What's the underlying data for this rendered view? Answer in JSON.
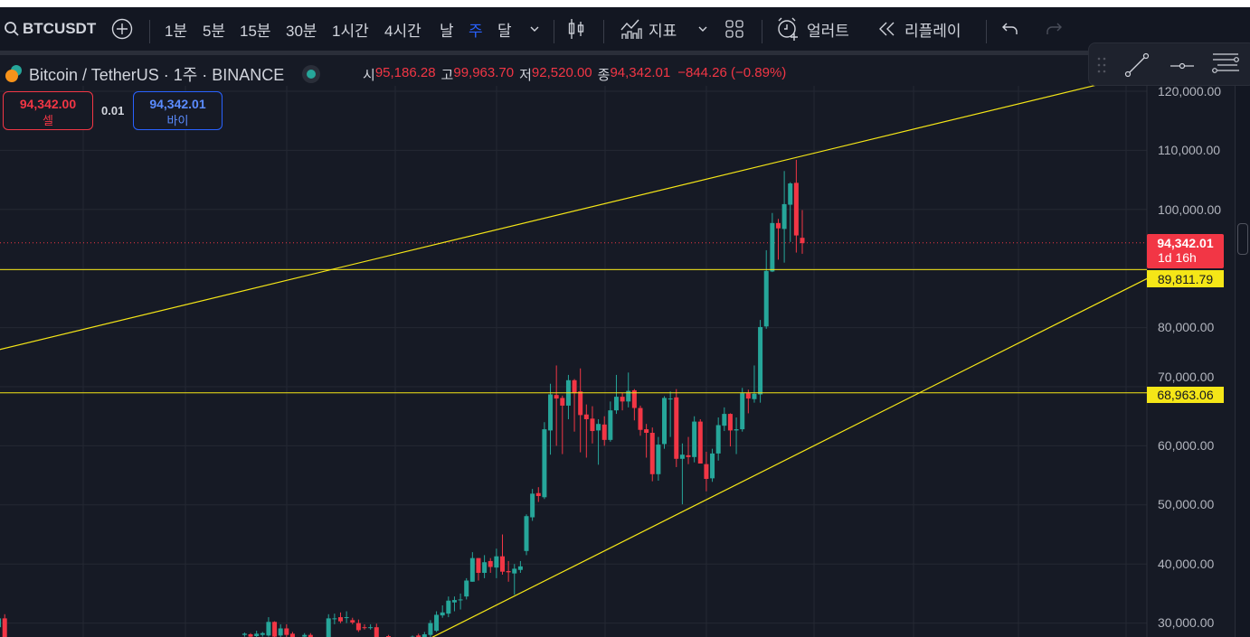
{
  "toolbar": {
    "symbol": "BTCUSDT",
    "intervals": [
      "1분",
      "5분",
      "15분",
      "30분",
      "1시간",
      "4시간",
      "날",
      "주",
      "달"
    ],
    "active_interval": "주",
    "indicators_label": "지표",
    "alert_label": "얼러트",
    "replay_label": "리플레이"
  },
  "legend": {
    "title": "Bitcoin / TetherUS · 1주 · BINANCE",
    "open_label": "시",
    "open": "95,186.28",
    "high_label": "고",
    "high": "99,963.70",
    "low_label": "저",
    "low": "92,520.00",
    "close_label": "종",
    "close": "94,342.01",
    "change": "−844.26 (−0.89%)"
  },
  "trade": {
    "sell_price": "94,342.00",
    "sell_label": "셀",
    "spread": "0.01",
    "buy_price": "94,342.01",
    "buy_label": "바이"
  },
  "price_axis": {
    "labels": [
      "120,000.00",
      "110,000.00",
      "100,000.00",
      "80,000.00",
      "70,000.00",
      "60,000.00",
      "50,000.00",
      "40,000.00",
      "30,000.00"
    ]
  },
  "tags": {
    "last_price": "94,342.01",
    "countdown": "1d 16h",
    "level1": "89,811.79",
    "level2": "68,963.06"
  },
  "colors": {
    "up": "#26a69a",
    "down": "#f23645",
    "drawing": "#f5e617",
    "accent": "#2962ff"
  },
  "chart_data": {
    "type": "candlestick",
    "price_range": [
      27600,
      125800
    ],
    "last_price": 94342.01,
    "horizontal_levels": [
      89811.79,
      68963.06
    ],
    "trend_lines": [
      {
        "from": {
          "bars_back": 133.8,
          "price": 76300
        },
        "to": {
          "bars_back": -50.5,
          "price": 121400
        }
      },
      {
        "from": {
          "bars_back": 61.7,
          "price": 27600
        },
        "to": {
          "bars_back": -57.5,
          "price": 88300
        }
      }
    ],
    "candles_bars_back_ohlc_k": [
      [
        134,
        29.3,
        31.5,
        28,
        30.8
      ],
      [
        133,
        30.8,
        31.5,
        27,
        27
      ],
      [
        93,
        28,
        28.4,
        27.7,
        28.2
      ],
      [
        92,
        28.1,
        28.3,
        27.5,
        27.7
      ],
      [
        91,
        27.8,
        28.7,
        27.6,
        28.2
      ],
      [
        90,
        28,
        28.5,
        27.7,
        28.3
      ],
      [
        89,
        27.9,
        31,
        27.7,
        30.2
      ],
      [
        88,
        30.2,
        30.3,
        27.5,
        27.7
      ],
      [
        87,
        27.9,
        29.8,
        27.6,
        29.1
      ],
      [
        86,
        29.1,
        29.8,
        27.5,
        28
      ],
      [
        85,
        28.2,
        28.5,
        27.4,
        27.6
      ],
      [
        83,
        27.7,
        28.3,
        27.5,
        28
      ],
      [
        82,
        28,
        28.3,
        27.4,
        27.6
      ],
      [
        79,
        27.6,
        31.5,
        27.5,
        30.8
      ],
      [
        78,
        30.7,
        31.6,
        29.8,
        30.8
      ],
      [
        77,
        31,
        31.8,
        30,
        30.3
      ],
      [
        76,
        30.9,
        32,
        30,
        31
      ],
      [
        75,
        30.5,
        30.9,
        29.8,
        30.1
      ],
      [
        74,
        30,
        30.6,
        28.5,
        28.8
      ],
      [
        73,
        29.3,
        29.8,
        28.9,
        29.2
      ],
      [
        72,
        29.2,
        29.8,
        28.9,
        29.3
      ],
      [
        71,
        29.3,
        29.9,
        27.4,
        27.5
      ],
      [
        69,
        27.8,
        28,
        27.4,
        27.6
      ],
      [
        65,
        27.5,
        27.9,
        27.3,
        27.7
      ],
      [
        64,
        27.9,
        28.2,
        27.4,
        27.6
      ],
      [
        63,
        27.6,
        28.5,
        27.4,
        28.1
      ],
      [
        62,
        28,
        30.5,
        27.5,
        30
      ],
      [
        61,
        28.7,
        32,
        28.5,
        31.4
      ],
      [
        60,
        31.3,
        33,
        30.9,
        31.8
      ],
      [
        59,
        31.6,
        34.5,
        31,
        33.8
      ],
      [
        58,
        33.5,
        34.5,
        32,
        33.9
      ],
      [
        57,
        33.9,
        35,
        32.3,
        34
      ],
      [
        56,
        34.5,
        37.6,
        34,
        37.2
      ],
      [
        55,
        37,
        42,
        37,
        41
      ],
      [
        54,
        41,
        41,
        37.2,
        38.5
      ],
      [
        53,
        38.5,
        41.5,
        37.6,
        40.3
      ],
      [
        52,
        40.5,
        41,
        38.5,
        39.5
      ],
      [
        51,
        39.4,
        42.6,
        37.6,
        41.3
      ],
      [
        50,
        41.3,
        45,
        38.2,
        38.7
      ],
      [
        49,
        38.8,
        40.5,
        37,
        38.6
      ],
      [
        48,
        38.4,
        40,
        34.8,
        39.2
      ],
      [
        47,
        39,
        40.5,
        38.5,
        39.6
      ],
      [
        46,
        42.2,
        48.4,
        41.5,
        48.1
      ],
      [
        45,
        47.9,
        52.7,
        47.3,
        51.9
      ],
      [
        44,
        52,
        53,
        50.5,
        51.5
      ],
      [
        43,
        51.3,
        64,
        51,
        62.8
      ],
      [
        42,
        62.6,
        70.5,
        58.5,
        68.7
      ],
      [
        41,
        68.6,
        73.6,
        60,
        68
      ],
      [
        40,
        68.1,
        68.5,
        58.6,
        66.8
      ],
      [
        39,
        66.8,
        72,
        64.5,
        71.1
      ],
      [
        38,
        71.1,
        71.3,
        62.4,
        68.9
      ],
      [
        37,
        69.2,
        73.1,
        58.9,
        65.2
      ],
      [
        36,
        65.3,
        67,
        58,
        64.5
      ],
      [
        35,
        64.6,
        66.7,
        60.4,
        62.5
      ],
      [
        34,
        62.6,
        64.5,
        56.8,
        63.7
      ],
      [
        33,
        63.6,
        65,
        60,
        61
      ],
      [
        32,
        61,
        67.5,
        60.7,
        66
      ],
      [
        31,
        66,
        72,
        65.4,
        68.3
      ],
      [
        30,
        68.3,
        69,
        66,
        67.5
      ],
      [
        29,
        67.5,
        72.4,
        66.5,
        69.3
      ],
      [
        28,
        69.4,
        69.6,
        64.3,
        66.4
      ],
      [
        27,
        66.4,
        66.8,
        61.7,
        62.7
      ],
      [
        26,
        62.8,
        63.7,
        58,
        62.2
      ],
      [
        25,
        62.2,
        63.1,
        54,
        55.2
      ],
      [
        24,
        55.2,
        61.5,
        54.1,
        60.2
      ],
      [
        23,
        60.3,
        68.4,
        59.5,
        68.1
      ],
      [
        22,
        68,
        69.2,
        61.5,
        68
      ],
      [
        21,
        68.2,
        69.6,
        56.4,
        57.8
      ],
      [
        20,
        57.8,
        60.4,
        50.1,
        58.5
      ],
      [
        19,
        58.4,
        61.5,
        56.9,
        58.1
      ],
      [
        18,
        58.1,
        65,
        57.2,
        64.1
      ],
      [
        17,
        64.1,
        64.5,
        57,
        57
      ],
      [
        16,
        56.9,
        59,
        52.3,
        54.4
      ],
      [
        15,
        54.5,
        59.5,
        53.9,
        58.7
      ],
      [
        14,
        58.7,
        64.8,
        57.5,
        63.5
      ],
      [
        13,
        63.4,
        66.5,
        62.5,
        65.4
      ],
      [
        12,
        65.4,
        65.5,
        59.9,
        62.6
      ],
      [
        11,
        62.6,
        64.8,
        58.6,
        62.8
      ],
      [
        10,
        62.8,
        69.8,
        62.4,
        68.9
      ],
      [
        9,
        68.9,
        69.5,
        65.5,
        68
      ],
      [
        8,
        67.9,
        73.6,
        67.3,
        68.8
      ],
      [
        7,
        68.7,
        81.3,
        67.3,
        80.1
      ],
      [
        6,
        80.2,
        93.1,
        79.8,
        89.6
      ],
      [
        5,
        89.5,
        99.4,
        89.4,
        97.7
      ],
      [
        4,
        97.7,
        98.4,
        91.5,
        96.8
      ],
      [
        3,
        96.7,
        106.5,
        91,
        100.9
      ],
      [
        2,
        100.8,
        104.6,
        94.5,
        104.4
      ],
      [
        1,
        104.5,
        108.4,
        92.7,
        95.6
      ],
      [
        0,
        95.2,
        99.9,
        92.5,
        94.3
      ]
    ]
  }
}
